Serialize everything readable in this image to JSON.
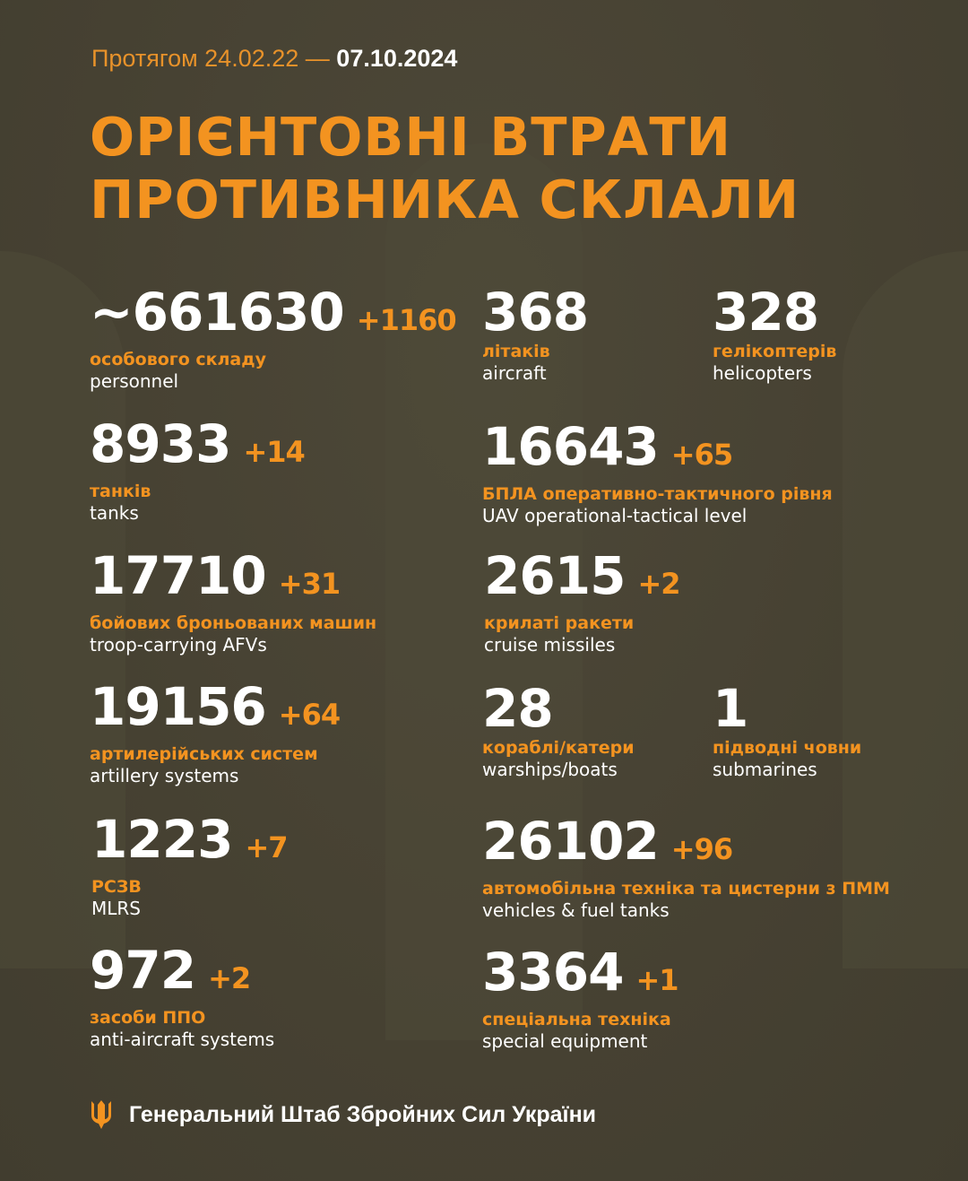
{
  "header": {
    "period_prefix": "Протягом 24.02.22 —",
    "period_date": "07.10.2024",
    "title_line1": "ОРІЄНТОВНІ ВТРАТИ",
    "title_line2": "ПРОТИВНИКА СКЛАЛИ"
  },
  "colors": {
    "accent": "#f39320",
    "background": "#474234",
    "text": "#ffffff"
  },
  "items": [
    {
      "value": "~661630",
      "delta": "+1160",
      "ua": "особового складу",
      "en": "personnel"
    },
    {
      "value": "368",
      "delta": "",
      "ua": "літаків",
      "en": "aircraft"
    },
    {
      "value": "328",
      "delta": "",
      "ua": "гелікоптерів",
      "en": "helicopters"
    },
    {
      "value": "8933",
      "delta": "+14",
      "ua": "танків",
      "en": "tanks"
    },
    {
      "value": "16643",
      "delta": "+65",
      "ua": "БПЛА оперативно-тактичного рівня",
      "en": "UAV operational-tactical level"
    },
    {
      "value": "17710",
      "delta": "+31",
      "ua": "бойових броньованих машин",
      "en": "troop-carrying AFVs"
    },
    {
      "value": "2615",
      "delta": "+2",
      "ua": "крилаті ракети",
      "en": "cruise missiles"
    },
    {
      "value": "19156",
      "delta": "+64",
      "ua": "артилерійських систем",
      "en": "artillery systems"
    },
    {
      "value": "28",
      "delta": "",
      "ua": "кораблі/катери",
      "en": "warships/boats"
    },
    {
      "value": "1",
      "delta": "",
      "ua": "підводні човни",
      "en": "submarines"
    },
    {
      "value": "1223",
      "delta": "+7",
      "ua": "РСЗВ",
      "en": "MLRS"
    },
    {
      "value": "26102",
      "delta": "+96",
      "ua": "автомобільна техніка та цистерни з ПММ",
      "en": "vehicles & fuel tanks"
    },
    {
      "value": "972",
      "delta": "+2",
      "ua": "засоби ППО",
      "en": "anti-aircraft systems"
    },
    {
      "value": "3364",
      "delta": "+1",
      "ua": "спеціальна техніка",
      "en": "special equipment"
    }
  ],
  "footer": {
    "icon": "trident-icon",
    "text": "Генеральний Штаб Збройних Сил України"
  }
}
